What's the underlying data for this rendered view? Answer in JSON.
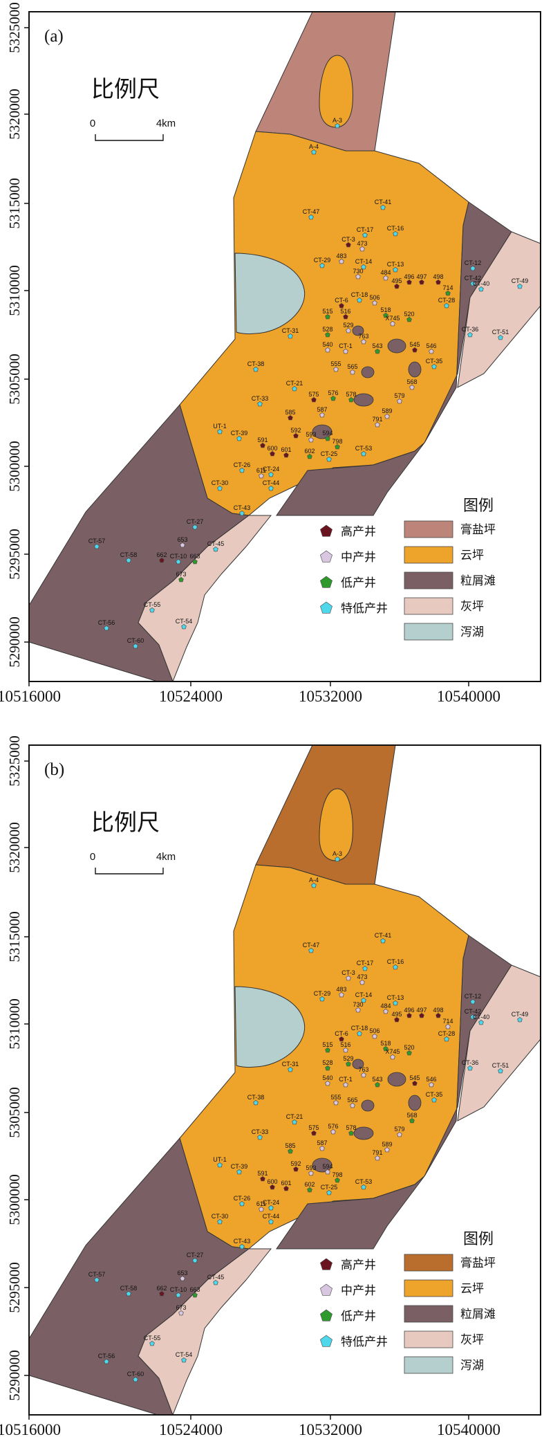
{
  "colors": {
    "gypsum": "#bd857a",
    "gypsum_b": "#b96e2e",
    "dolo": "#eea32b",
    "grainbank": "#7a6064",
    "lime": "#e7c9bf",
    "lagoon": "#b4cfce",
    "high_well": "#6a1420",
    "mid_well": "#d9c6e0",
    "low_well": "#2e9a2e",
    "vlow_well": "#4fd8ec"
  },
  "axes": {
    "y_ticks": [
      "5325000",
      "5320000",
      "5315000",
      "5310000",
      "5305000",
      "5300000",
      "5295000",
      "5290000"
    ],
    "x_ticks": [
      "10516000",
      "10524000",
      "10532000",
      "10540000"
    ]
  },
  "scale": {
    "title": "比例尺",
    "zero": "0",
    "dist": "4km"
  },
  "legend": {
    "title": "图例",
    "wells": [
      {
        "label": "高产井",
        "icon": "pentagon-dark-red"
      },
      {
        "label": "中产井",
        "icon": "pentagon-light-purple"
      },
      {
        "label": "低产井",
        "icon": "pentagon-green"
      },
      {
        "label": "特低产井",
        "icon": "pentagon-cyan"
      }
    ],
    "facies": [
      "膏盐坪",
      "云坪",
      "粒屑滩",
      "灰坪",
      "泻湖"
    ]
  },
  "panels": [
    {
      "id": "a",
      "label": "(a)",
      "wells": [
        {
          "name": "A-3",
          "cls": "vlow"
        },
        {
          "name": "A-4",
          "cls": "vlow"
        },
        {
          "name": "CT-47",
          "cls": "vlow"
        },
        {
          "name": "CT-41",
          "cls": "vlow"
        },
        {
          "name": "CT-17",
          "cls": "vlow"
        },
        {
          "name": "CT-16",
          "cls": "vlow"
        },
        {
          "name": "CT-3",
          "cls": "high"
        },
        {
          "name": "473",
          "cls": "mid"
        },
        {
          "name": "CT-29",
          "cls": "vlow"
        },
        {
          "name": "483",
          "cls": "mid"
        },
        {
          "name": "CT-14",
          "cls": "vlow"
        },
        {
          "name": "CT-13",
          "cls": "vlow"
        },
        {
          "name": "CT-12",
          "cls": "vlow"
        },
        {
          "name": "CT-42",
          "cls": "vlow"
        },
        {
          "name": "CT-49",
          "cls": "vlow"
        },
        {
          "name": "CT-40",
          "cls": "vlow"
        },
        {
          "name": "730",
          "cls": "mid"
        },
        {
          "name": "484",
          "cls": "mid"
        },
        {
          "name": "495",
          "cls": "high"
        },
        {
          "name": "496",
          "cls": "high"
        },
        {
          "name": "497",
          "cls": "high"
        },
        {
          "name": "498",
          "cls": "high"
        },
        {
          "name": "714",
          "cls": "low"
        },
        {
          "name": "CT-6",
          "cls": "high"
        },
        {
          "name": "CT-18",
          "cls": "vlow"
        },
        {
          "name": "506",
          "cls": "mid"
        },
        {
          "name": "CT-28",
          "cls": "vlow"
        },
        {
          "name": "515",
          "cls": "low"
        },
        {
          "name": "516",
          "cls": "high"
        },
        {
          "name": "518",
          "cls": "low"
        },
        {
          "name": "520",
          "cls": "low"
        },
        {
          "name": "CT-31",
          "cls": "vlow"
        },
        {
          "name": "528",
          "cls": "low"
        },
        {
          "name": "529",
          "cls": "mid"
        },
        {
          "name": "763",
          "cls": "mid"
        },
        {
          "name": "X745",
          "cls": "mid"
        },
        {
          "name": "CT-36",
          "cls": "vlow"
        },
        {
          "name": "CT-51",
          "cls": "vlow"
        },
        {
          "name": "540",
          "cls": "mid"
        },
        {
          "name": "CT-1",
          "cls": "mid"
        },
        {
          "name": "543",
          "cls": "low"
        },
        {
          "name": "545",
          "cls": "high"
        },
        {
          "name": "546",
          "cls": "mid"
        },
        {
          "name": "CT-38",
          "cls": "vlow"
        },
        {
          "name": "CT-35",
          "cls": "vlow"
        },
        {
          "name": "555",
          "cls": "mid"
        },
        {
          "name": "565",
          "cls": "mid"
        },
        {
          "name": "568",
          "cls": "mid"
        },
        {
          "name": "CT-21",
          "cls": "vlow"
        },
        {
          "name": "575",
          "cls": "high"
        },
        {
          "name": "576",
          "cls": "low"
        },
        {
          "name": "578",
          "cls": "low"
        },
        {
          "name": "579",
          "cls": "mid"
        },
        {
          "name": "CT-33",
          "cls": "vlow"
        },
        {
          "name": "585",
          "cls": "high"
        },
        {
          "name": "587",
          "cls": "mid"
        },
        {
          "name": "589",
          "cls": "mid"
        },
        {
          "name": "791",
          "cls": "mid"
        },
        {
          "name": "UT-1",
          "cls": "vlow"
        },
        {
          "name": "CT-39",
          "cls": "vlow"
        },
        {
          "name": "591",
          "cls": "high"
        },
        {
          "name": "592",
          "cls": "high"
        },
        {
          "name": "593",
          "cls": "mid"
        },
        {
          "name": "594",
          "cls": "low"
        },
        {
          "name": "798",
          "cls": "low"
        },
        {
          "name": "600",
          "cls": "high"
        },
        {
          "name": "601",
          "cls": "high"
        },
        {
          "name": "602",
          "cls": "low"
        },
        {
          "name": "CT-25",
          "cls": "vlow"
        },
        {
          "name": "CT-53",
          "cls": "vlow"
        },
        {
          "name": "CT-26",
          "cls": "vlow"
        },
        {
          "name": "611",
          "cls": "mid"
        },
        {
          "name": "CT-24",
          "cls": "vlow"
        },
        {
          "name": "CT-44",
          "cls": "vlow"
        },
        {
          "name": "CT-30",
          "cls": "vlow"
        },
        {
          "name": "CT-43",
          "cls": "vlow"
        },
        {
          "name": "CT-27",
          "cls": "vlow"
        },
        {
          "name": "653",
          "cls": "mid"
        },
        {
          "name": "CT-45",
          "cls": "vlow"
        },
        {
          "name": "CT-57",
          "cls": "vlow"
        },
        {
          "name": "CT-58",
          "cls": "vlow"
        },
        {
          "name": "662",
          "cls": "high"
        },
        {
          "name": "CT-10",
          "cls": "vlow"
        },
        {
          "name": "663",
          "cls": "low"
        },
        {
          "name": "673",
          "cls": "low"
        },
        {
          "name": "CT-55",
          "cls": "vlow"
        },
        {
          "name": "CT-54",
          "cls": "vlow"
        },
        {
          "name": "CT-56",
          "cls": "vlow"
        },
        {
          "name": "CT-60",
          "cls": "vlow"
        }
      ]
    },
    {
      "id": "b",
      "label": "(b)",
      "wells": [
        {
          "name": "A-3",
          "cls": "vlow"
        },
        {
          "name": "A-4",
          "cls": "vlow"
        },
        {
          "name": "CT-47",
          "cls": "vlow"
        },
        {
          "name": "CT-41",
          "cls": "vlow"
        },
        {
          "name": "CT-17",
          "cls": "vlow"
        },
        {
          "name": "CT-16",
          "cls": "vlow"
        },
        {
          "name": "CT-3",
          "cls": "mid"
        },
        {
          "name": "473",
          "cls": "mid"
        },
        {
          "name": "CT-29",
          "cls": "vlow"
        },
        {
          "name": "483",
          "cls": "mid"
        },
        {
          "name": "CT-14",
          "cls": "vlow"
        },
        {
          "name": "CT-13",
          "cls": "vlow"
        },
        {
          "name": "CT-12",
          "cls": "vlow"
        },
        {
          "name": "CT-42",
          "cls": "vlow"
        },
        {
          "name": "CT-49",
          "cls": "vlow"
        },
        {
          "name": "CT-40",
          "cls": "vlow"
        },
        {
          "name": "730",
          "cls": "mid"
        },
        {
          "name": "484",
          "cls": "mid"
        },
        {
          "name": "495",
          "cls": "high"
        },
        {
          "name": "496",
          "cls": "high"
        },
        {
          "name": "497",
          "cls": "high"
        },
        {
          "name": "498",
          "cls": "high"
        },
        {
          "name": "714",
          "cls": "mid"
        },
        {
          "name": "CT-6",
          "cls": "high"
        },
        {
          "name": "CT-18",
          "cls": "vlow"
        },
        {
          "name": "506",
          "cls": "mid"
        },
        {
          "name": "CT-28",
          "cls": "vlow"
        },
        {
          "name": "515",
          "cls": "low"
        },
        {
          "name": "516",
          "cls": "mid"
        },
        {
          "name": "518",
          "cls": "low"
        },
        {
          "name": "520",
          "cls": "low"
        },
        {
          "name": "CT-31",
          "cls": "vlow"
        },
        {
          "name": "528",
          "cls": "low"
        },
        {
          "name": "529",
          "cls": "low"
        },
        {
          "name": "763",
          "cls": "mid"
        },
        {
          "name": "X745",
          "cls": "mid"
        },
        {
          "name": "CT-36",
          "cls": "vlow"
        },
        {
          "name": "CT-51",
          "cls": "vlow"
        },
        {
          "name": "540",
          "cls": "mid"
        },
        {
          "name": "CT-1",
          "cls": "mid"
        },
        {
          "name": "543",
          "cls": "low"
        },
        {
          "name": "545",
          "cls": "high"
        },
        {
          "name": "546",
          "cls": "mid"
        },
        {
          "name": "CT-38",
          "cls": "vlow"
        },
        {
          "name": "CT-35",
          "cls": "vlow"
        },
        {
          "name": "555",
          "cls": "mid"
        },
        {
          "name": "565",
          "cls": "mid"
        },
        {
          "name": "568",
          "cls": "low"
        },
        {
          "name": "CT-21",
          "cls": "vlow"
        },
        {
          "name": "575",
          "cls": "high"
        },
        {
          "name": "576",
          "cls": "mid"
        },
        {
          "name": "578",
          "cls": "low"
        },
        {
          "name": "579",
          "cls": "mid"
        },
        {
          "name": "CT-33",
          "cls": "vlow"
        },
        {
          "name": "585",
          "cls": "low"
        },
        {
          "name": "587",
          "cls": "mid"
        },
        {
          "name": "589",
          "cls": "mid"
        },
        {
          "name": "791",
          "cls": "mid"
        },
        {
          "name": "UT-1",
          "cls": "vlow"
        },
        {
          "name": "CT-39",
          "cls": "vlow"
        },
        {
          "name": "591",
          "cls": "high"
        },
        {
          "name": "592",
          "cls": "high"
        },
        {
          "name": "593",
          "cls": "mid"
        },
        {
          "name": "594",
          "cls": "mid"
        },
        {
          "name": "798",
          "cls": "low"
        },
        {
          "name": "600",
          "cls": "high"
        },
        {
          "name": "601",
          "cls": "high"
        },
        {
          "name": "602",
          "cls": "low"
        },
        {
          "name": "CT-25",
          "cls": "vlow"
        },
        {
          "name": "CT-53",
          "cls": "vlow"
        },
        {
          "name": "CT-26",
          "cls": "vlow"
        },
        {
          "name": "611",
          "cls": "mid"
        },
        {
          "name": "CT-24",
          "cls": "vlow"
        },
        {
          "name": "CT-44",
          "cls": "vlow"
        },
        {
          "name": "CT-30",
          "cls": "vlow"
        },
        {
          "name": "CT-43",
          "cls": "vlow"
        },
        {
          "name": "CT-27",
          "cls": "vlow"
        },
        {
          "name": "653",
          "cls": "mid"
        },
        {
          "name": "CT-45",
          "cls": "vlow"
        },
        {
          "name": "CT-57",
          "cls": "vlow"
        },
        {
          "name": "CT-58",
          "cls": "vlow"
        },
        {
          "name": "662",
          "cls": "high"
        },
        {
          "name": "CT-10",
          "cls": "vlow"
        },
        {
          "name": "663",
          "cls": "low"
        },
        {
          "name": "673",
          "cls": "mid"
        },
        {
          "name": "CT-55",
          "cls": "vlow"
        },
        {
          "name": "CT-54",
          "cls": "vlow"
        },
        {
          "name": "CT-56",
          "cls": "vlow"
        },
        {
          "name": "CT-60",
          "cls": "vlow"
        }
      ]
    }
  ]
}
